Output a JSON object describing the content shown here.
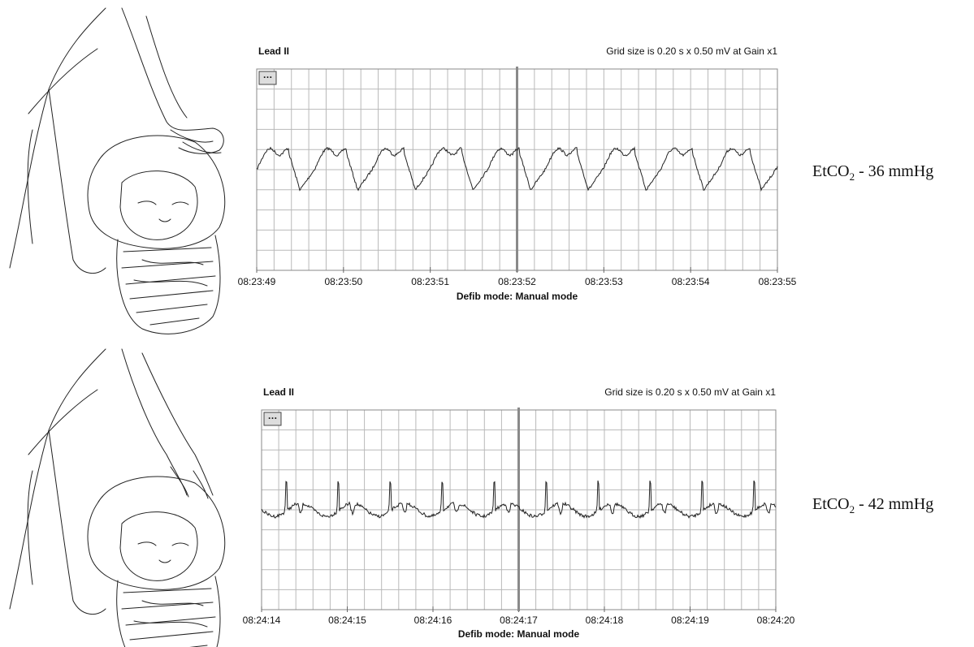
{
  "panels": [
    {
      "lead": "Lead II",
      "grid_info": "Grid size is 0.20 s x 0.50 mV at Gain x1",
      "time_labels": [
        "08:23:49",
        "08:23:50",
        "08:23:51",
        "08:23:52",
        "08:23:53",
        "08:23:54",
        "08:23:55"
      ],
      "mode": "Defib mode: Manual mode",
      "etco2": {
        "prefix": "EtCO",
        "subscript": "2",
        "suffix": " - 36 mmHg"
      }
    },
    {
      "lead": "Lead II",
      "grid_info": "Grid size is 0.20 s x 0.50 mV at Gain x1",
      "time_labels": [
        "08:24:14",
        "08:24:15",
        "08:24:16",
        "08:24:17",
        "08:24:18",
        "08:24:19",
        "08:24:20"
      ],
      "mode": "Defib mode: Manual mode",
      "etco2": {
        "prefix": "EtCO",
        "subscript": "2",
        "suffix": " - 42 mmHg"
      }
    }
  ]
}
